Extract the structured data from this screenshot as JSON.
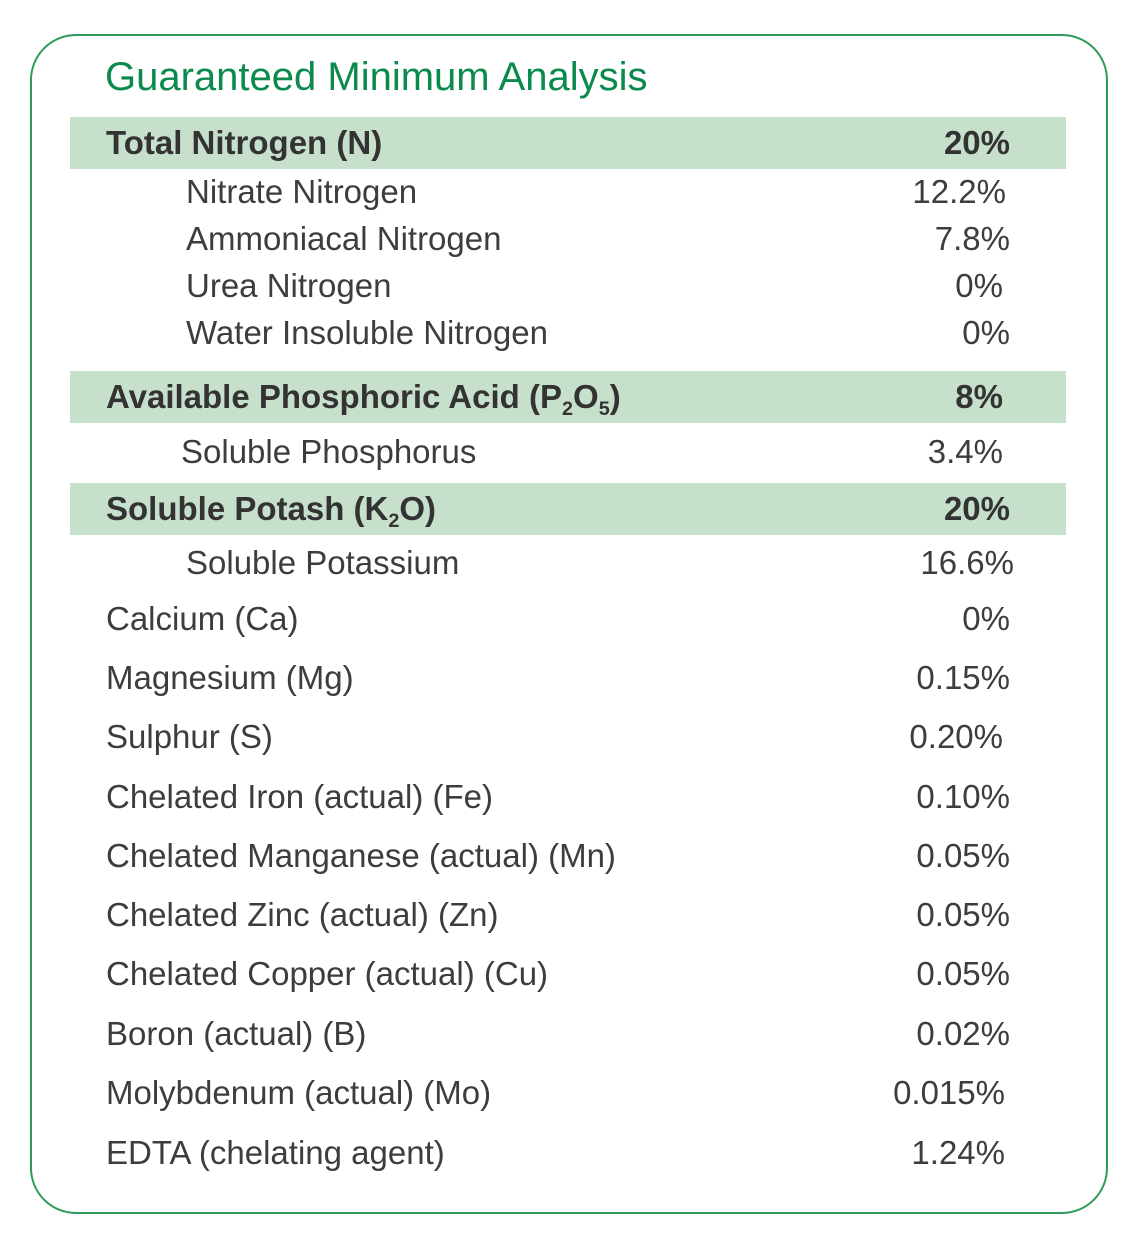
{
  "title": "Guaranteed Minimum Analysis",
  "nitrogen": {
    "label": "Total Nitrogen (N)",
    "value": "20%",
    "items": [
      {
        "label": "Nitrate Nitrogen",
        "value": "12.2%"
      },
      {
        "label": "Ammoniacal Nitrogen",
        "value": "7.8%"
      },
      {
        "label": "Urea Nitrogen",
        "value": "0%"
      },
      {
        "label": "Water Insoluble Nitrogen",
        "value": "0%"
      }
    ]
  },
  "phosphoric": {
    "label_prefix": "Available Phosphoric Acid (P",
    "label_sub1": "2",
    "label_mid": "O",
    "label_sub2": "5",
    "label_suffix": ")",
    "value": "8%",
    "items": [
      {
        "label": "Soluble Phosphorus",
        "value": "3.4%"
      }
    ]
  },
  "potash": {
    "label_prefix": "Soluble Potash (K",
    "label_sub": "2",
    "label_suffix": "O)",
    "value": "20%",
    "items": [
      {
        "label": "Soluble Potassium",
        "value": "16.6%"
      }
    ]
  },
  "nutrients": [
    {
      "label": "Calcium (Ca)",
      "value": "0%"
    },
    {
      "label": "Magnesium (Mg)",
      "value": "0.15%"
    },
    {
      "label": "Sulphur (S)",
      "value": "0.20%"
    },
    {
      "label": "Chelated Iron (actual) (Fe)",
      "value": "0.10%"
    },
    {
      "label": "Chelated Manganese (actual) (Mn)",
      "value": "0.05%"
    },
    {
      "label": "Chelated Zinc (actual) (Zn)",
      "value": "0.05%"
    },
    {
      "label": "Chelated Copper (actual) (Cu)",
      "value": "0.05%"
    },
    {
      "label": "Boron (actual) (B)",
      "value": "0.02%"
    },
    {
      "label": "Molybdenum (actual) (Mo)",
      "value": "0.015%"
    },
    {
      "label": "EDTA (chelating agent)",
      "value": "1.24%"
    }
  ],
  "colors": {
    "accent": "#0a8a4c",
    "border": "#2e9a5a",
    "header_band": "#c7e0cb",
    "text": "#3d3d3d"
  }
}
